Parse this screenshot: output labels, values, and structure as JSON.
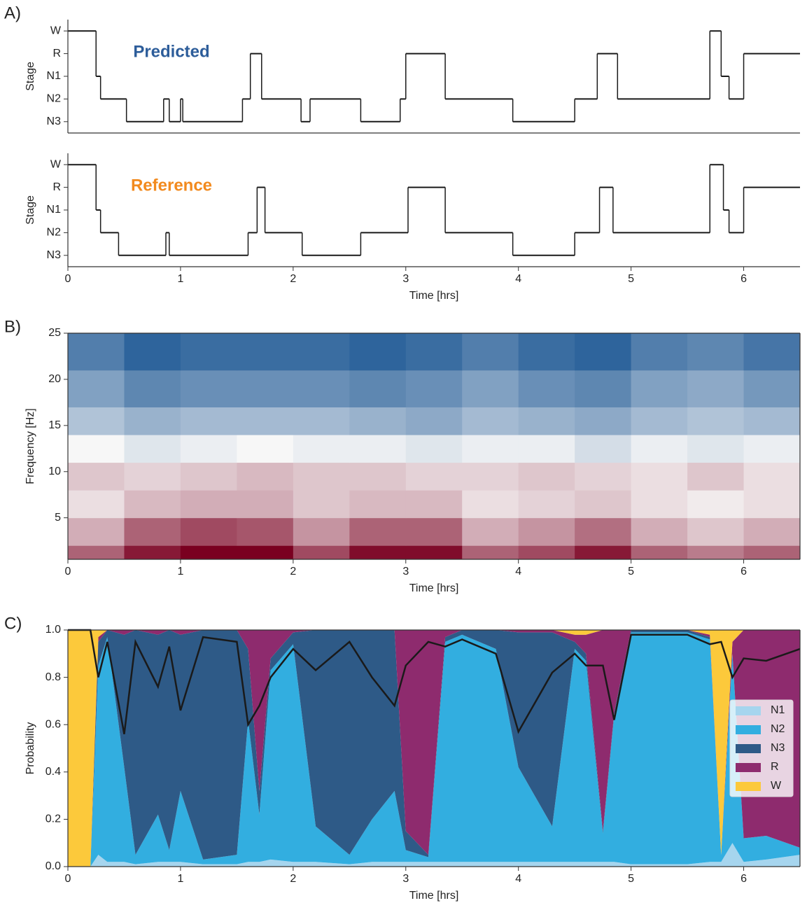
{
  "chart_data": [
    {
      "type": "step",
      "panel_label": "A)",
      "y_label": "Stage",
      "annotation": {
        "text": "Predicted",
        "color": "#2d5d9a"
      },
      "x": [
        0,
        0.25,
        0.29,
        0.52,
        0.85,
        0.9,
        1.0,
        1.02,
        1.55,
        1.62,
        1.72,
        2.07,
        2.15,
        2.6,
        2.95,
        3.0,
        3.35,
        3.95,
        4.5,
        4.7,
        4.88,
        5.7,
        5.8,
        5.87,
        6.0
      ],
      "values": [
        4,
        2,
        1,
        0,
        1,
        0,
        1,
        0,
        1,
        3,
        1,
        0,
        1,
        0,
        1,
        3,
        1,
        0,
        1,
        3,
        1,
        4,
        2,
        1,
        3
      ],
      "color": "#1a1a1a",
      "xlim": [
        0,
        6.5
      ],
      "ylim": [
        -0.5,
        4.5
      ],
      "yticks": [
        {
          "value": 4,
          "label": "W"
        },
        {
          "value": 3,
          "label": "R"
        },
        {
          "value": 2,
          "label": "N1"
        },
        {
          "value": 1,
          "label": "N2"
        },
        {
          "value": 0,
          "label": "N3"
        }
      ]
    },
    {
      "type": "step",
      "y_label": "Stage",
      "x_label": "Time [hrs]",
      "annotation": {
        "text": "Reference",
        "color": "#f28a1e"
      },
      "x": [
        0,
        0.25,
        0.29,
        0.45,
        0.87,
        0.9,
        1.6,
        1.68,
        1.75,
        2.08,
        2.6,
        3.02,
        3.35,
        3.95,
        4.5,
        4.72,
        4.84,
        5.7,
        5.82,
        5.87,
        6.0
      ],
      "values": [
        4,
        2,
        1,
        0,
        1,
        0,
        1,
        3,
        1,
        0,
        1,
        3,
        1,
        0,
        1,
        3,
        1,
        4,
        2,
        1,
        3
      ],
      "color": "#1a1a1a",
      "xlim": [
        0,
        6.5
      ],
      "ylim": [
        -0.5,
        4.5
      ],
      "xticks": [
        0,
        1,
        2,
        3,
        4,
        5,
        6
      ],
      "yticks": [
        {
          "value": 4,
          "label": "W"
        },
        {
          "value": 3,
          "label": "R"
        },
        {
          "value": 2,
          "label": "N1"
        },
        {
          "value": 1,
          "label": "N2"
        },
        {
          "value": 0,
          "label": "N3"
        }
      ]
    },
    {
      "type": "heatmap",
      "panel_label": "B)",
      "y_label": "Frequency [Hz]",
      "x_label": "Time [hrs]",
      "frame": true,
      "x_edges": [
        0,
        0.5,
        1,
        1.5,
        2,
        2.5,
        3,
        3.5,
        4,
        4.5,
        5,
        5.5,
        6,
        6.5
      ],
      "y_edges": [
        0.5,
        2,
        5,
        8,
        11,
        14,
        17,
        21,
        25
      ],
      "z": [
        [
          0.6,
          0.9,
          1,
          1,
          0.7,
          0.95,
          0.95,
          0.6,
          0.7,
          0.9,
          0.6,
          0.5,
          0.6
        ],
        [
          0.3,
          0.6,
          0.7,
          0.65,
          0.4,
          0.6,
          0.6,
          0.3,
          0.4,
          0.55,
          0.3,
          0.2,
          0.3
        ],
        [
          0.1,
          0.25,
          0.3,
          0.3,
          0.2,
          0.25,
          0.25,
          0.1,
          0.15,
          0.2,
          0.1,
          0.05,
          0.1
        ],
        [
          0.2,
          0.15,
          0.2,
          0.25,
          0.2,
          0.2,
          0.15,
          0.15,
          0.2,
          0.15,
          0.1,
          0.2,
          0.1
        ],
        [
          0,
          -0.1,
          -0.05,
          0,
          -0.05,
          -0.05,
          -0.1,
          -0.05,
          -0.05,
          -0.15,
          -0.05,
          -0.1,
          -0.05
        ],
        [
          -0.3,
          -0.4,
          -0.35,
          -0.35,
          -0.35,
          -0.4,
          -0.45,
          -0.35,
          -0.4,
          -0.45,
          -0.35,
          -0.3,
          -0.35
        ],
        [
          -0.5,
          -0.65,
          -0.6,
          -0.6,
          -0.6,
          -0.65,
          -0.6,
          -0.5,
          -0.6,
          -0.65,
          -0.5,
          -0.45,
          -0.55
        ],
        [
          -0.7,
          -0.85,
          -0.8,
          -0.8,
          -0.8,
          -0.85,
          -0.8,
          -0.7,
          -0.8,
          -0.85,
          -0.7,
          -0.65,
          -0.75
        ]
      ],
      "zlim": [
        -1,
        1
      ],
      "colormap": [
        "#0b4a8c",
        "#f7f7f7",
        "#7a0020"
      ],
      "xlim": [
        0,
        6.5
      ],
      "ylim": [
        0.5,
        25
      ],
      "xticks": [
        0,
        1,
        2,
        3,
        4,
        5,
        6
      ],
      "yticks": [
        5,
        10,
        15,
        20,
        25
      ]
    },
    {
      "type": "stacked_area",
      "panel_label": "C)",
      "y_label": "Probability",
      "x_label": "Time [hrs]",
      "frame": true,
      "legend": "right",
      "x": [
        0,
        0.2,
        0.27,
        0.35,
        0.5,
        0.6,
        0.8,
        0.9,
        1.0,
        1.2,
        1.5,
        1.6,
        1.7,
        1.8,
        2.0,
        2.2,
        2.5,
        2.7,
        2.9,
        3.0,
        3.2,
        3.35,
        3.5,
        3.8,
        4.0,
        4.3,
        4.5,
        4.6,
        4.75,
        4.85,
        5.0,
        5.5,
        5.7,
        5.8,
        5.9,
        6.0,
        6.2,
        6.5
      ],
      "series": [
        {
          "name": "N1",
          "color": "#a6d5ee",
          "values": [
            0,
            0,
            0.05,
            0.02,
            0.02,
            0.01,
            0.02,
            0.02,
            0.02,
            0.01,
            0.01,
            0.02,
            0.02,
            0.03,
            0.02,
            0.02,
            0.01,
            0.02,
            0.02,
            0.02,
            0.02,
            0.02,
            0.02,
            0.02,
            0.02,
            0.02,
            0.02,
            0.02,
            0.02,
            0.02,
            0.01,
            0.01,
            0.02,
            0.02,
            0.1,
            0.02,
            0.03,
            0.05
          ]
        },
        {
          "name": "N2",
          "color": "#32aee0",
          "values": [
            0,
            0,
            0.8,
            0.95,
            0.4,
            0.04,
            0.2,
            0.05,
            0.3,
            0.02,
            0.04,
            0.6,
            0.2,
            0.8,
            0.92,
            0.15,
            0.04,
            0.18,
            0.3,
            0.05,
            0.02,
            0.93,
            0.96,
            0.9,
            0.4,
            0.15,
            0.9,
            0.85,
            0.12,
            0.62,
            0.98,
            0.98,
            0.94,
            0.03,
            0.8,
            0.1,
            0.1,
            0.03
          ]
        },
        {
          "name": "N3",
          "color": "#2e5a87",
          "values": [
            0,
            0,
            0.1,
            0.03,
            0.56,
            0.95,
            0.76,
            0.93,
            0.66,
            0.97,
            0.95,
            0.3,
            0.1,
            0.05,
            0.05,
            0.83,
            0.95,
            0.8,
            0.68,
            0.08,
            0.01,
            0.02,
            0.02,
            0.08,
            0.57,
            0.82,
            0.03,
            0.03,
            0.01,
            0.01,
            0.01,
            0.01,
            0.01,
            0,
            0,
            0,
            0,
            0
          ]
        },
        {
          "name": "R",
          "color": "#8e2b6e",
          "values": [
            0,
            0,
            0.02,
            0,
            0.02,
            0,
            0.02,
            0,
            0.02,
            0,
            0,
            0.08,
            0.68,
            0.12,
            0.01,
            0,
            0,
            0,
            0,
            0.85,
            0.95,
            0.03,
            0,
            0,
            0.01,
            0.01,
            0.03,
            0.08,
            0.85,
            0.35,
            0,
            0,
            0.01,
            0,
            0.05,
            0.88,
            0.87,
            0.92
          ]
        },
        {
          "name": "W",
          "color": "#fcc93b",
          "values": [
            1,
            1,
            0.03,
            0,
            0,
            0,
            0,
            0,
            0,
            0,
            0,
            0,
            0,
            0,
            0,
            0,
            0,
            0,
            0,
            0,
            0,
            0,
            0,
            0,
            0,
            0,
            0.02,
            0.02,
            0,
            0,
            0,
            0,
            0.02,
            0.95,
            0.05,
            0,
            0,
            0
          ]
        }
      ],
      "max_line": {
        "color": "#1a1a1a",
        "values": [
          1,
          1,
          0.8,
          0.95,
          0.56,
          0.95,
          0.76,
          0.93,
          0.66,
          0.97,
          0.95,
          0.6,
          0.68,
          0.8,
          0.92,
          0.83,
          0.95,
          0.8,
          0.68,
          0.85,
          0.95,
          0.93,
          0.96,
          0.9,
          0.57,
          0.82,
          0.9,
          0.85,
          0.85,
          0.62,
          0.98,
          0.98,
          0.94,
          0.95,
          0.8,
          0.88,
          0.87,
          0.92
        ]
      },
      "xlim": [
        0,
        6.5
      ],
      "ylim": [
        0,
        1
      ],
      "xticks": [
        0,
        1,
        2,
        3,
        4,
        5,
        6
      ],
      "yticks": [
        {
          "value": 0,
          "label": "0.0"
        },
        {
          "value": 0.2,
          "label": "0.2"
        },
        {
          "value": 0.4,
          "label": "0.4"
        },
        {
          "value": 0.6,
          "label": "0.6"
        },
        {
          "value": 0.8,
          "label": "0.8"
        },
        {
          "value": 1,
          "label": "1.0"
        }
      ]
    }
  ]
}
